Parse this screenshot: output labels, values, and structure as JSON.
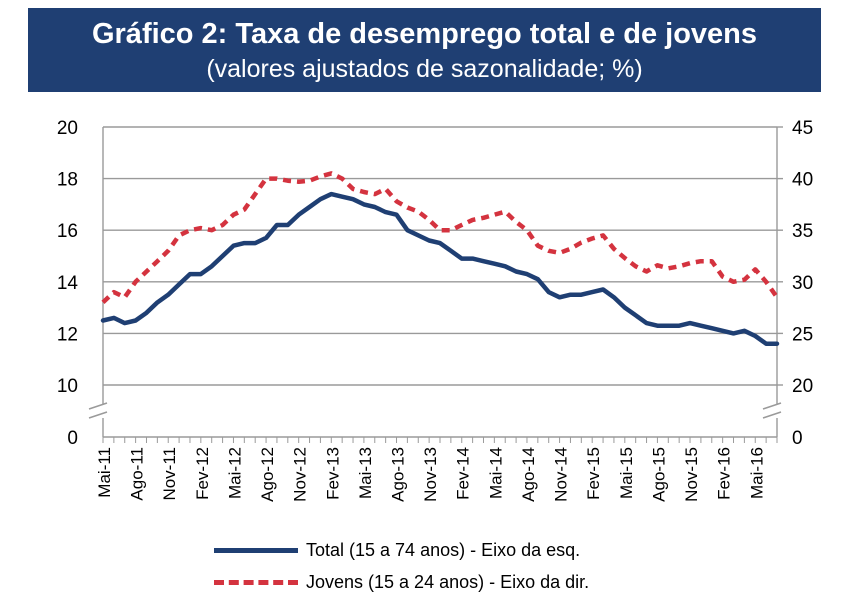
{
  "chart_data": {
    "type": "line",
    "title": "Gráfico 2: Taxa de desemprego total e de jovens",
    "subtitle": "(valores ajustados de sazonalidade; %)",
    "left_axis": {
      "min": 10,
      "max": 20,
      "break_label": "0",
      "ticks": [
        "20",
        "18",
        "16",
        "14",
        "12",
        "10"
      ]
    },
    "right_axis": {
      "min": 20,
      "max": 45,
      "break_label": "0",
      "ticks": [
        "45",
        "40",
        "35",
        "30",
        "25",
        "20"
      ]
    },
    "x_tick_labels": [
      "Mai-11",
      "Ago-11",
      "Nov-11",
      "Fev-12",
      "Mai-12",
      "Ago-12",
      "Nov-12",
      "Fev-13",
      "Mai-13",
      "Ago-13",
      "Nov-13",
      "Fev-14",
      "Mai-14",
      "Ago-14",
      "Nov-14",
      "Fev-15",
      "Mai-15",
      "Ago-15",
      "Nov-15",
      "Fev-16",
      "Mai-16"
    ],
    "months_per_tick": 3,
    "series": [
      {
        "name": "Total (15 a 74 anos) - Eixo da esq.",
        "axis": "left",
        "color": "#1f3f73",
        "style": "solid",
        "values": [
          12.5,
          12.6,
          12.4,
          12.5,
          12.8,
          13.2,
          13.5,
          13.9,
          14.3,
          14.3,
          14.6,
          15.0,
          15.4,
          15.5,
          15.5,
          15.7,
          16.2,
          16.2,
          16.6,
          16.9,
          17.2,
          17.4,
          17.3,
          17.2,
          17.0,
          16.9,
          16.7,
          16.6,
          16.0,
          15.8,
          15.6,
          15.5,
          15.2,
          14.9,
          14.9,
          14.8,
          14.7,
          14.6,
          14.4,
          14.3,
          14.1,
          13.6,
          13.4,
          13.5,
          13.5,
          13.6,
          13.7,
          13.4,
          13.0,
          12.7,
          12.4,
          12.3,
          12.3,
          12.3,
          12.4,
          12.3,
          12.2,
          12.1,
          12.0,
          12.1,
          11.9,
          11.6,
          11.6
        ]
      },
      {
        "name": "Jovens (15 a 24 anos) - Eixo da dir.",
        "axis": "right",
        "color": "#d4333f",
        "style": "dashed",
        "values": [
          28.0,
          29.0,
          28.5,
          30.0,
          31.0,
          32.0,
          33.0,
          34.5,
          35.0,
          35.2,
          35.0,
          35.5,
          36.5,
          37.0,
          38.5,
          40.0,
          40.0,
          39.8,
          39.7,
          39.8,
          40.2,
          40.5,
          40.0,
          39.0,
          38.7,
          38.5,
          39.0,
          37.8,
          37.2,
          36.8,
          36.0,
          35.0,
          35.0,
          35.5,
          36.0,
          36.2,
          36.5,
          36.8,
          35.8,
          35.0,
          33.5,
          33.0,
          32.8,
          33.2,
          33.8,
          34.2,
          34.5,
          33.2,
          32.3,
          31.5,
          31.0,
          31.6,
          31.3,
          31.5,
          31.8,
          32.0,
          32.0,
          30.5,
          30.0,
          30.2,
          31.2,
          30.0,
          28.5
        ]
      }
    ]
  }
}
